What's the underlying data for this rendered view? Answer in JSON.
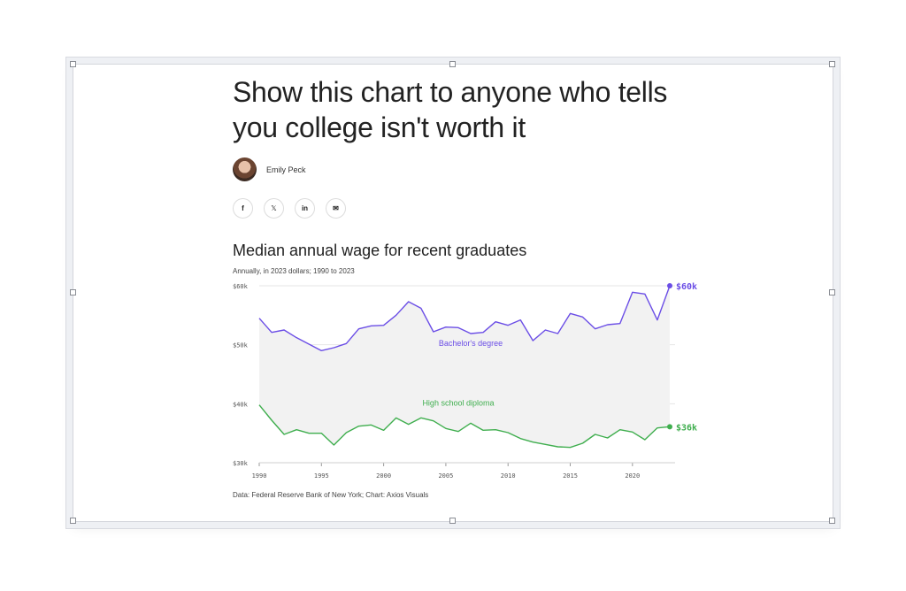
{
  "article": {
    "headline_line1": "Show this chart to anyone who tells",
    "headline_line2": "you college isn't worth it",
    "author": "Emily Peck",
    "share_icons": [
      "facebook-icon",
      "x-icon",
      "linkedin-icon",
      "email-icon"
    ]
  },
  "chart_data": {
    "type": "line",
    "title": "Median annual wage for recent graduates",
    "subtitle": "Annually, in 2023 dollars; 1990 to 2023",
    "source": "Data: Federal Reserve Bank of New York; Chart: Axios Visuals",
    "x": [
      1990,
      1991,
      1992,
      1993,
      1994,
      1995,
      1996,
      1997,
      1998,
      1999,
      2000,
      2001,
      2002,
      2003,
      2004,
      2005,
      2006,
      2007,
      2008,
      2009,
      2010,
      2011,
      2012,
      2013,
      2014,
      2015,
      2016,
      2017,
      2018,
      2019,
      2020,
      2021,
      2022,
      2023
    ],
    "xlim": [
      1990,
      2023
    ],
    "ylim": [
      30000,
      60000
    ],
    "yticks": [
      30000,
      40000,
      50000,
      60000
    ],
    "ytick_labels": [
      "$30k",
      "$40k",
      "$50k",
      "$60k"
    ],
    "xticks": [
      1990,
      1995,
      2000,
      2005,
      2010,
      2015,
      2020
    ],
    "xtick_labels": [
      "1990",
      "1995",
      "2000",
      "2005",
      "2010",
      "2015",
      "2020"
    ],
    "grid": true,
    "series": [
      {
        "name": "Bachelor's degree",
        "color": "#6b4ee6",
        "end_label": "$60k",
        "values": [
          54500,
          52100,
          52500,
          51200,
          50100,
          49000,
          49500,
          50200,
          52700,
          53200,
          53300,
          55000,
          57300,
          56200,
          52200,
          53000,
          52900,
          51900,
          52100,
          53900,
          53300,
          54200,
          50700,
          52500,
          51900,
          55300,
          54700,
          52700,
          53400,
          53600,
          58900,
          58600,
          54200,
          60000
        ]
      },
      {
        "name": "High school diploma",
        "color": "#3fae4e",
        "end_label": "$36k",
        "values": [
          39800,
          37200,
          34800,
          35600,
          35000,
          35000,
          33000,
          35100,
          36200,
          36400,
          35500,
          37600,
          36500,
          37600,
          37100,
          35800,
          35300,
          36700,
          35500,
          35600,
          35100,
          34100,
          33500,
          33100,
          32700,
          32600,
          33300,
          34800,
          34200,
          35600,
          35200,
          33900,
          35900,
          36100
        ]
      }
    ]
  }
}
